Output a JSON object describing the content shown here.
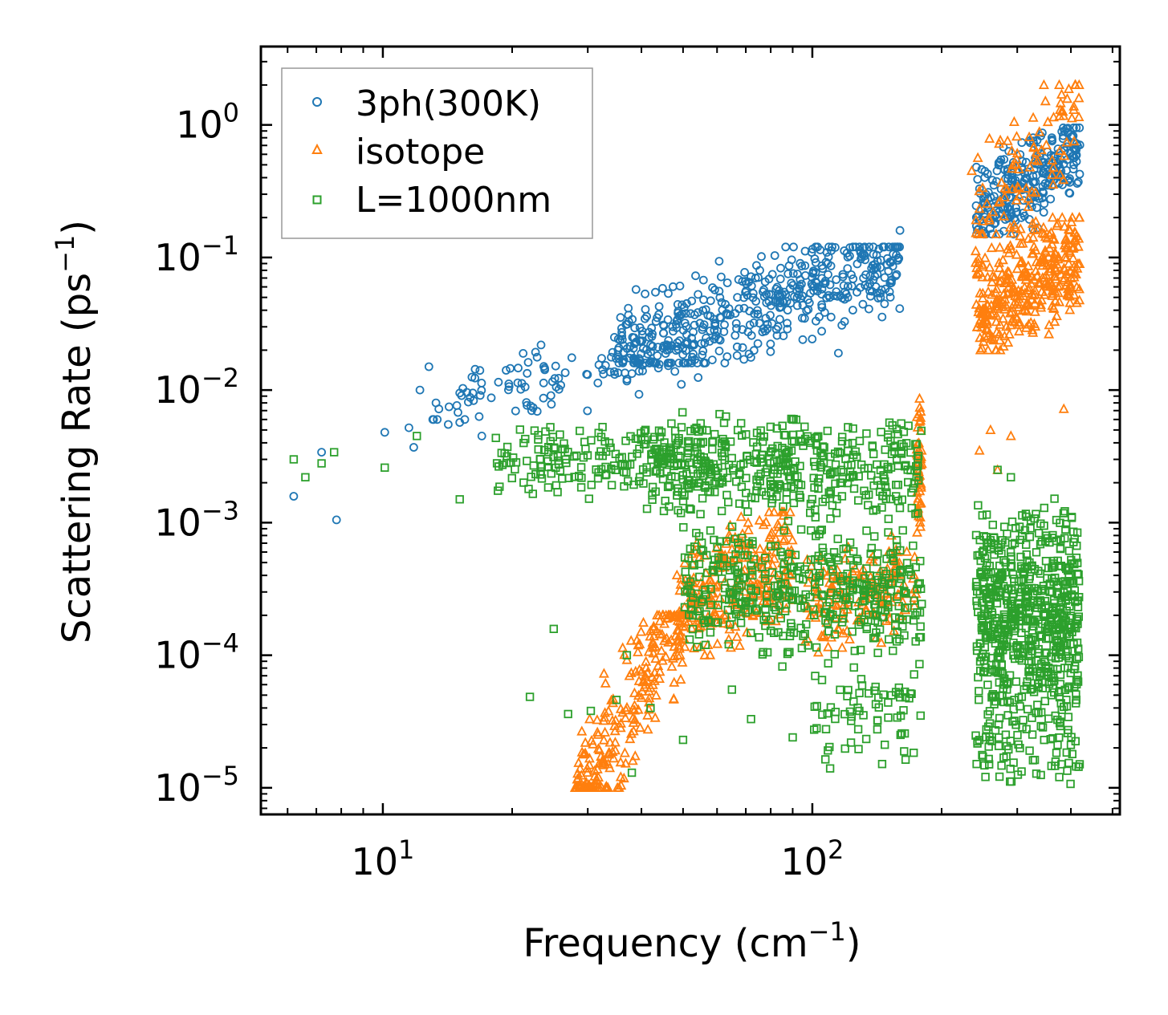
{
  "chart_data": {
    "type": "scatter",
    "title": "",
    "xlabel": "Frequency (cm",
    "xlabel_sup": "−1",
    "xlabel_end": ")",
    "ylabel": "Scattering Rate (ps",
    "ylabel_sup": "−1",
    "ylabel_end": ")",
    "xscale": "log",
    "yscale": "log",
    "xlim": [
      5.2,
      520
    ],
    "ylim": [
      6.3e-06,
      3.9
    ],
    "legend_position": "top-left",
    "x_ticks": [
      {
        "value": 10,
        "base": "10",
        "exp": "1"
      },
      {
        "value": 100,
        "base": "10",
        "exp": "2"
      }
    ],
    "y_ticks": [
      {
        "value": 1,
        "base": "10",
        "exp": "0"
      },
      {
        "value": 0.1,
        "base": "10",
        "exp": "−1"
      },
      {
        "value": 0.01,
        "base": "10",
        "exp": "−2"
      },
      {
        "value": 0.001,
        "base": "10",
        "exp": "−3"
      },
      {
        "value": 0.0001,
        "base": "10",
        "exp": "−4"
      },
      {
        "value": 1e-05,
        "base": "10",
        "exp": "−5"
      }
    ],
    "series": [
      {
        "name": "3ph(300K)",
        "marker": "circle",
        "color": "#1f77b4",
        "clusters": [
          {
            "x0": 13,
            "x1": 55,
            "y0": 0.006,
            "y1": 0.025,
            "n": 110,
            "trend": 0.7
          },
          {
            "x0": 35,
            "x1": 160,
            "y0": 0.016,
            "y1": 0.12,
            "n": 500,
            "trend": 0.8
          },
          {
            "x0": 240,
            "x1": 420,
            "y0": 0.15,
            "y1": 0.95,
            "n": 280,
            "trend": 0.6
          }
        ],
        "points": [
          [
            6.2,
            0.00158
          ],
          [
            7.8,
            0.00105
          ],
          [
            7.2,
            0.0034
          ],
          [
            10.1,
            0.0048
          ],
          [
            11.5,
            0.0052
          ],
          [
            12.2,
            0.01
          ],
          [
            12.8,
            0.015
          ],
          [
            13.5,
            0.0072
          ],
          [
            14.2,
            0.0055
          ],
          [
            15.1,
            0.0095
          ],
          [
            15.1,
            0.0057
          ],
          [
            16.2,
            0.0095
          ],
          [
            17,
            0.0045
          ],
          [
            11.8,
            0.0037
          ],
          [
            160,
            0.16
          ],
          [
            95,
            0.024
          ],
          [
            115,
            0.019
          ]
        ]
      },
      {
        "name": "isotope",
        "marker": "triangle",
        "color": "#ff7f0e",
        "clusters": [
          {
            "x0": 28,
            "x1": 52,
            "y0": 1e-05,
            "y1": 0.0002,
            "n": 260,
            "trend": 1.3
          },
          {
            "x0": 48,
            "x1": 90,
            "y0": 0.0001,
            "y1": 0.0012,
            "n": 260,
            "trend": 0.4
          },
          {
            "x0": 95,
            "x1": 175,
            "y0": 0.0001,
            "y1": 0.0008,
            "n": 160,
            "trend": 0.2
          },
          {
            "x0": 175,
            "x1": 180,
            "y0": 0.0005,
            "y1": 0.013,
            "n": 50,
            "trend": 0
          },
          {
            "x0": 240,
            "x1": 420,
            "y0": 0.02,
            "y1": 0.2,
            "n": 350,
            "trend": 0.4
          },
          {
            "x0": 240,
            "x1": 420,
            "y0": 0.15,
            "y1": 2.0,
            "n": 90,
            "trend": 0.8
          }
        ],
        "points": [
          [
            245,
            0.0035
          ],
          [
            260,
            0.005
          ],
          [
            290,
            0.0045
          ],
          [
            270,
            0.0025
          ],
          [
            385,
            0.0072
          ],
          [
            235,
            0.45
          ],
          [
            410,
            2.0
          ],
          [
            55,
            0.000165
          ]
        ]
      },
      {
        "name": "L=1000nm",
        "marker": "square",
        "color": "#2ca02c",
        "clusters": [
          {
            "x0": 18,
            "x1": 60,
            "y0": 0.0015,
            "y1": 0.006,
            "n": 180,
            "trend": 0
          },
          {
            "x0": 40,
            "x1": 180,
            "y0": 0.001,
            "y1": 0.007,
            "n": 420,
            "trend": 0
          },
          {
            "x0": 50,
            "x1": 180,
            "y0": 8e-05,
            "y1": 0.0012,
            "n": 420,
            "trend": 0
          },
          {
            "x0": 100,
            "x1": 180,
            "y0": 1.5e-05,
            "y1": 0.0001,
            "n": 70,
            "trend": 0
          },
          {
            "x0": 240,
            "x1": 420,
            "y0": 2e-05,
            "y1": 0.0016,
            "n": 650,
            "trend": 0
          },
          {
            "x0": 240,
            "x1": 420,
            "y0": 1e-05,
            "y1": 4e-05,
            "n": 70,
            "trend": 0
          }
        ],
        "points": [
          [
            6.2,
            0.003
          ],
          [
            6.6,
            0.0022
          ],
          [
            7.2,
            0.0028
          ],
          [
            7.7,
            0.0034
          ],
          [
            10.1,
            0.0026
          ],
          [
            12,
            0.0045
          ],
          [
            15.1,
            0.0015
          ],
          [
            22,
            4.85e-05
          ],
          [
            25,
            0.000158
          ],
          [
            27,
            3.6e-05
          ],
          [
            30.5,
            3.8e-05
          ],
          [
            35,
            4.6e-05
          ],
          [
            37,
            0.0001
          ],
          [
            38,
            1.3e-05
          ],
          [
            42,
            4e-05
          ],
          [
            50,
            2.3e-05
          ],
          [
            65,
            5.5e-05
          ],
          [
            72,
            3.3e-05
          ],
          [
            90,
            2.4e-05
          ],
          [
            110,
            1.4e-05
          ],
          [
            130,
            6.6e-05
          ],
          [
            270,
            0.0025
          ],
          [
            290,
            0.0022
          ]
        ]
      }
    ]
  }
}
